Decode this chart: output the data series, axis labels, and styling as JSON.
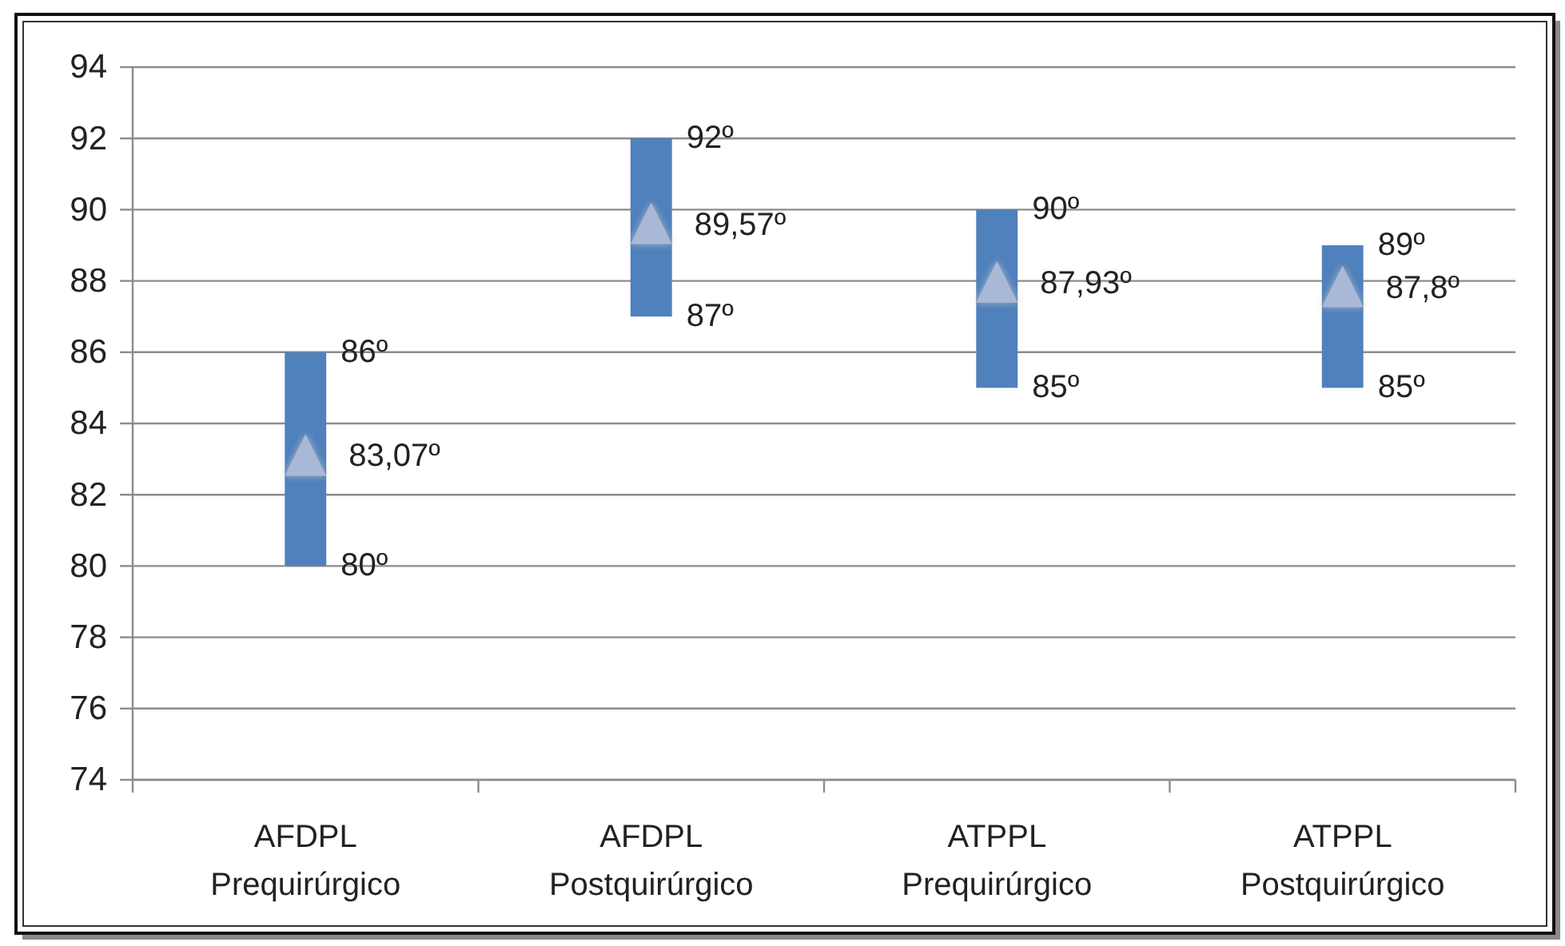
{
  "chart_data": {
    "type": "bar",
    "categories": [
      "AFDPL\nPrequirúrgico",
      "AFDPL\nPostquirúrgico",
      "ATPPL\nPrequirúrgico",
      "ATPPL\nPostquirúrgico"
    ],
    "series": [
      {
        "color": "#4f81bd",
        "base": [
          80,
          87,
          85,
          85
        ],
        "values": [
          6,
          5,
          5,
          4
        ]
      },
      {
        "type": "scatter",
        "color": "#aab8d7",
        "marker": "triangle",
        "x": [
          "AFDPL\nPrequirúrgico",
          "AFDPL\nPostquirúrgico",
          "ATPPL\nPrequirúrgico",
          "ATPPL\nPostquirúrgico"
        ],
        "values": [
          83.07,
          89.57,
          87.93,
          87.8
        ],
        "value_labels": [
          "83,07º",
          "89,57º",
          "87,93º",
          "87,8º"
        ]
      }
    ],
    "ylim": [
      74,
      94
    ],
    "yticks": [
      74,
      76,
      78,
      80,
      82,
      84,
      86,
      88,
      90,
      92,
      94
    ],
    "grid": "y",
    "annotations": [
      {
        "text": "86º",
        "x": "AFDPL\nPrequirúrgico",
        "y": 86
      },
      {
        "text": "80º",
        "x": "AFDPL\nPrequirúrgico",
        "y": 80
      },
      {
        "text": "92º",
        "x": "AFDPL\nPostquirúrgico",
        "y": 92
      },
      {
        "text": "87º",
        "x": "AFDPL\nPostquirúrgico",
        "y": 87
      },
      {
        "text": "90º",
        "x": "ATPPL\nPrequirúrgico",
        "y": 90
      },
      {
        "text": "85º",
        "x": "ATPPL\nPrequirúrgico",
        "y": 85
      },
      {
        "text": "89º",
        "x": "ATPPL\nPostquirúrgico",
        "y": 89
      },
      {
        "text": "85º",
        "x": "ATPPL\nPostquirúrgico",
        "y": 85
      }
    ]
  }
}
